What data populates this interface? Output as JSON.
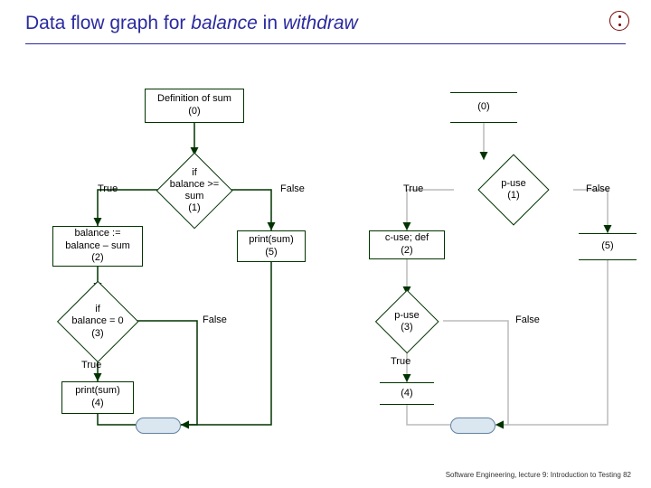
{
  "title": {
    "prefix": "Data flow graph for ",
    "em1": "balance",
    "mid": " in ",
    "em2": "withdraw"
  },
  "footer": "Software Engineering, lecture 9: Introduction to Testing   82",
  "colors": {
    "title": "#2a2aa0",
    "node_border": "#003300",
    "pill_fill": "#dbe7f0",
    "pill_border": "#6080a0"
  },
  "left": {
    "n0": "Definition of sum\n(0)",
    "d1": "if\nbalance >=\nsum\n(1)",
    "true_lbl_1": "True",
    "false_lbl_1": "False",
    "n2": "balance :=\nbalance – sum\n(2)",
    "n5": "print(sum)\n(5)",
    "d3": "if\nbalance = 0\n(3)",
    "false_lbl_3": "False",
    "true_lbl_3": "True",
    "n4": "print(sum)\n(4)"
  },
  "right": {
    "n0": "(0)",
    "d1": "p-use\n(1)",
    "true_lbl_1": "True",
    "false_lbl_1": "False",
    "n2": "c-use; def\n(2)",
    "n5": "(5)",
    "d3": "p-use\n(3)",
    "false_lbl_3": "False",
    "true_lbl_3": "True",
    "n4": "(4)"
  }
}
